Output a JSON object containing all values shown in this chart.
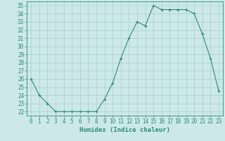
{
  "x": [
    0,
    1,
    2,
    3,
    4,
    5,
    6,
    7,
    8,
    9,
    10,
    11,
    12,
    13,
    14,
    15,
    16,
    17,
    18,
    19,
    20,
    21,
    22,
    23
  ],
  "y": [
    26,
    24,
    23,
    22,
    22,
    22,
    22,
    22,
    22,
    23.5,
    25.5,
    28.5,
    31,
    33,
    32.5,
    35,
    34.5,
    34.5,
    34.5,
    34.5,
    34,
    31.5,
    28.5,
    24.5
  ],
  "xlabel": "Humidex (Indice chaleur)",
  "xlim": [
    -0.5,
    23.5
  ],
  "ylim": [
    21.5,
    35.5
  ],
  "yticks": [
    22,
    23,
    24,
    25,
    26,
    27,
    28,
    29,
    30,
    31,
    32,
    33,
    34,
    35
  ],
  "xticks": [
    0,
    1,
    2,
    3,
    4,
    5,
    6,
    7,
    8,
    9,
    10,
    11,
    12,
    13,
    14,
    15,
    16,
    17,
    18,
    19,
    20,
    21,
    22,
    23
  ],
  "line_color": "#2e8b7a",
  "bg_color": "#cce8e8",
  "grid_color": "#aacfcf",
  "tick_fontsize": 5.5,
  "label_fontsize": 6.5
}
